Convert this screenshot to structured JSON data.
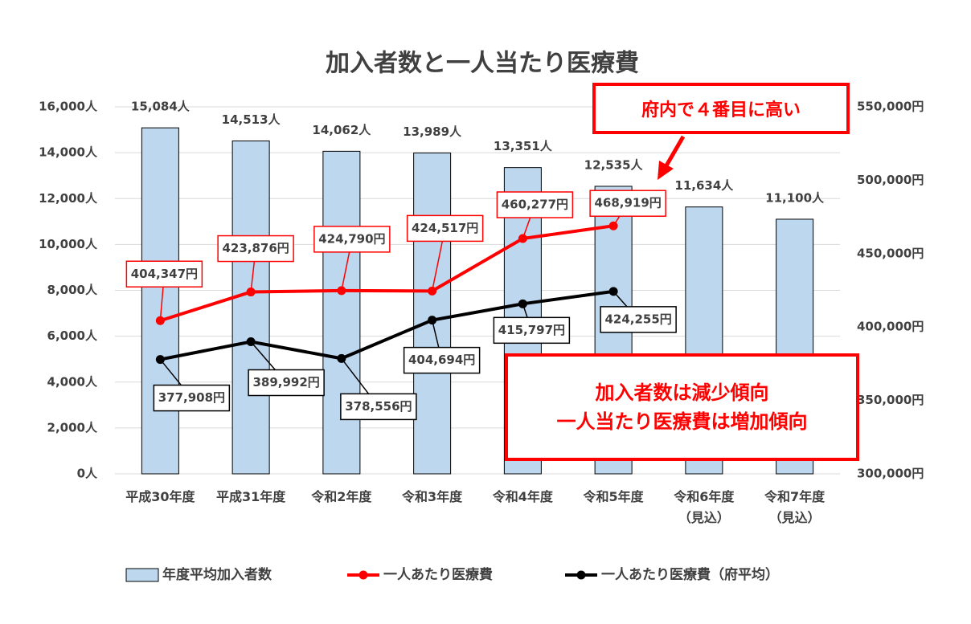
{
  "chart_data": {
    "type": "bar-line",
    "title": "加入者数と一人当たり医療費",
    "categories": [
      "平成30年度",
      "平成31年度",
      "令和2年度",
      "令和3年度",
      "令和4年度",
      "令和5年度",
      "令和6年度\n（見込）",
      "令和7年度\n（見込）"
    ],
    "ylim": [
      0,
      16000
    ],
    "yticks": [
      {
        "value": 0,
        "label": "0人"
      },
      {
        "value": 2000,
        "label": "2,000人"
      },
      {
        "value": 4000,
        "label": "4,000人"
      },
      {
        "value": 6000,
        "label": "6,000人"
      },
      {
        "value": 8000,
        "label": "8,000人"
      },
      {
        "value": 10000,
        "label": "10,000人"
      },
      {
        "value": 12000,
        "label": "12,000人"
      },
      {
        "value": 14000,
        "label": "14,000人"
      },
      {
        "value": 16000,
        "label": "16,000人"
      }
    ],
    "y2lim": [
      300000,
      550000
    ],
    "y2ticks": [
      {
        "value": 300000,
        "label": "300,000円"
      },
      {
        "value": 350000,
        "label": "350,000円"
      },
      {
        "value": 400000,
        "label": "400,000円"
      },
      {
        "value": 450000,
        "label": "450,000円"
      },
      {
        "value": 500000,
        "label": "500,000円"
      },
      {
        "value": 550000,
        "label": "550,000円"
      }
    ],
    "grid": true,
    "series": [
      {
        "name": "年度平均加入者数",
        "type": "bar",
        "color": "#bdd7ee",
        "values": [
          15084,
          14513,
          14062,
          13989,
          13351,
          12535,
          11634,
          11100
        ],
        "value_labels": [
          "15,084人",
          "14,513人",
          "14,062人",
          "13,989人",
          "13,351人",
          "12,535人",
          "11,634人",
          "11,100人"
        ]
      },
      {
        "name": "一人あたり医療費",
        "type": "line",
        "axis": "y2",
        "color": "#ff0000",
        "values": [
          404347,
          423876,
          424790,
          424517,
          460277,
          468919,
          null,
          null
        ],
        "value_labels": [
          "404,347円",
          "423,876円",
          "424,790円",
          "424,517円",
          "460,277円",
          "468,919円",
          null,
          null
        ]
      },
      {
        "name": "一人あたり医療費（府平均）",
        "type": "line",
        "axis": "y2",
        "color": "#000000",
        "values": [
          377908,
          389992,
          378556,
          404694,
          415797,
          424255,
          null,
          null
        ],
        "value_labels": [
          "377,908円",
          "389,992円",
          "378,556円",
          "404,694円",
          "415,797円",
          "424,255円",
          null,
          null
        ]
      }
    ],
    "annotations": [
      "府内で４番目に高い",
      "加入者数は減少傾向\n一人当たり医療費は増加傾向"
    ],
    "legend": "bottom"
  }
}
